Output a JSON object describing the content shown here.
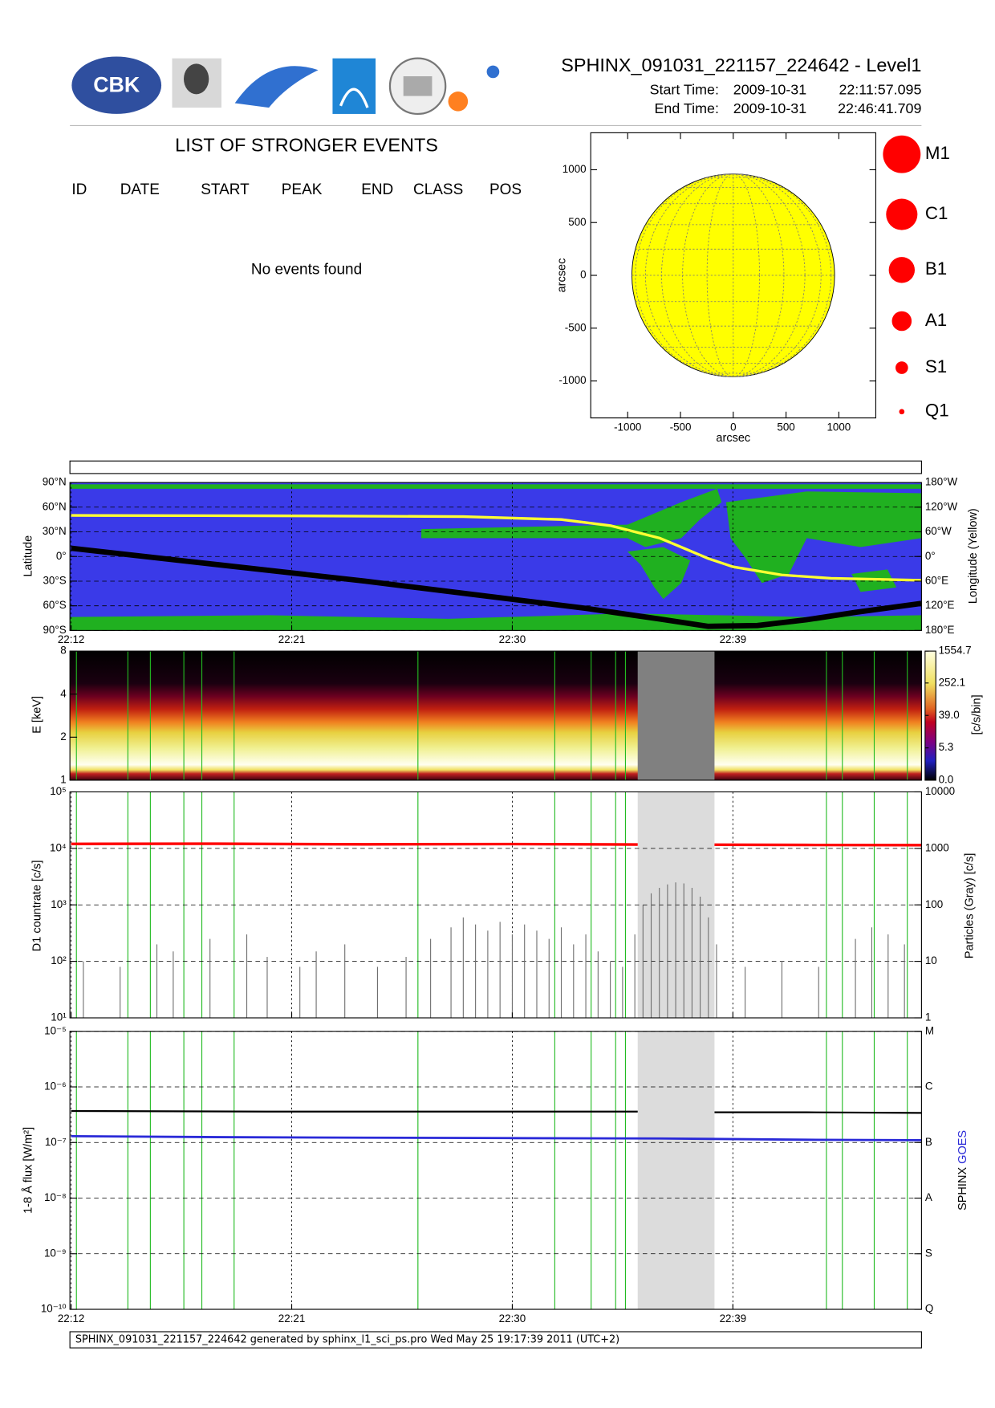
{
  "header": {
    "logo_text": "CBK",
    "title": "SPHINX_091031_221157_224642 - Level1",
    "start_label": "Start Time:",
    "start_date": "2009-10-31",
    "start_time": "22:11:57.095",
    "end_label": "End Time:",
    "end_date": "2009-10-31",
    "end_time": "22:46:41.709"
  },
  "events": {
    "title": "LIST OF STRONGER EVENTS",
    "columns": [
      "ID",
      "DATE",
      "START",
      "PEAK",
      "END",
      "CLASS",
      "POS"
    ],
    "message": "No events found"
  },
  "footer": "SPHINX_091031_221157_224642 generated by sphinx_l1_sci_ps.pro Wed May 25 19:17:39 2011 (UTC+2)",
  "event_markers": {
    "color": "#22bb22",
    "x": [
      "22:12:13",
      "22:14:19",
      "22:15:14",
      "22:16:36",
      "22:17:20",
      "22:18:39",
      "22:26:09",
      "22:31:44",
      "22:33:13",
      "22:34:13",
      "22:34:37",
      "22:42:49",
      "22:43:28",
      "22:44:46",
      "22:46:07"
    ]
  },
  "chart_data": [
    {
      "type": "disk",
      "xlabel": "arcsec",
      "ylabel": "arcsec",
      "xlim": [
        -1350,
        1350
      ],
      "ylim": [
        -1350,
        1350
      ],
      "xticks": [
        -1000,
        -500,
        0,
        500,
        1000
      ],
      "yticks": [
        -1000,
        -500,
        0,
        500,
        1000
      ],
      "disk_radius": 960,
      "color": "#ffff00",
      "legend": [
        "M1",
        "C1",
        "B1",
        "A1",
        "S1",
        "Q1"
      ],
      "legend_color": "#ff0000"
    },
    {
      "type": "line",
      "ylabel": "Latitude",
      "y2label": "Longitude (Yellow)",
      "grid": true,
      "xtick_labels": true,
      "xlim": [
        "22:11:57.095",
        "22:46:41.709"
      ],
      "xticks": [
        "22:12",
        "22:21",
        "22:30",
        "22:39"
      ],
      "ylim": [
        -90,
        90
      ],
      "yticks": [
        {
          "value": -90,
          "label": "90°S"
        },
        {
          "value": -60,
          "label": "60°S"
        },
        {
          "value": -30,
          "label": "30°S"
        },
        {
          "value": 0,
          "label": "0°"
        },
        {
          "value": 30,
          "label": "30°N"
        },
        {
          "value": 60,
          "label": "60°N"
        },
        {
          "value": 90,
          "label": "90°N"
        }
      ],
      "y2lim": [
        180,
        -180
      ],
      "y2ticks": [
        {
          "value": 180,
          "label": "180°E"
        },
        {
          "value": 120,
          "label": "120°E"
        },
        {
          "value": 60,
          "label": "60°E"
        },
        {
          "value": 0,
          "label": "0°"
        },
        {
          "value": -60,
          "label": "60°W"
        },
        {
          "value": -120,
          "label": "120°W"
        },
        {
          "value": -180,
          "label": "180°W"
        }
      ],
      "series": [
        {
          "color": "#ffff33",
          "axis": "y2",
          "width": 3,
          "x": [
            "22:12",
            "22:20",
            "22:28",
            "22:32",
            "22:34",
            "22:36",
            "22:37",
            "22:38",
            "22:39",
            "22:41",
            "22:43",
            "22:46:41"
          ],
          "values": [
            -100,
            -99,
            -97,
            -90,
            -75,
            -45,
            -20,
            5,
            25,
            45,
            53,
            58
          ]
        },
        {
          "color": "#000000",
          "width": 6,
          "x": [
            "22:12",
            "22:18",
            "22:24",
            "22:30",
            "22:33",
            "22:36",
            "22:38",
            "22:40",
            "22:42",
            "22:44",
            "22:46:41"
          ],
          "values": [
            10,
            -10,
            -30,
            -52,
            -63,
            -76,
            -85,
            -84,
            -77,
            -68,
            -57
          ]
        }
      ]
    },
    {
      "type": "spectrogram",
      "ylabel": "E [keV]",
      "clabel": "[c/s/bin]",
      "ylog": true,
      "xlim": [
        "22:11:57.095",
        "22:46:41.709"
      ],
      "ylim": [
        1,
        8
      ],
      "yticks": [
        1,
        2,
        4,
        8
      ],
      "clim": [
        0,
        1554.7
      ],
      "cticks": [
        {
          "value": 0,
          "label": "0.0"
        },
        5.3,
        {
          "value": 39,
          "label": "39.0"
        },
        252.1,
        1554.7
      ],
      "gap": [
        "22:35:07",
        "22:38:15"
      ],
      "gap_color": "#808080"
    },
    {
      "type": "line",
      "ylabel": "D1 countrate [c/s]",
      "y2label": "Particles (Gray) [c/s]",
      "ylog": true,
      "grid": true,
      "xtick_labels": false,
      "xlim": [
        "22:11:57.095",
        "22:46:41.709"
      ],
      "xticks": [
        "22:12",
        "22:21",
        "22:30",
        "22:39"
      ],
      "ylim": [
        10,
        100000
      ],
      "yticks": [
        {
          "value": 10,
          "label": "10¹"
        },
        {
          "value": 100,
          "label": "10²"
        },
        {
          "value": 1000,
          "label": "10³"
        },
        {
          "value": 10000,
          "label": "10⁴"
        },
        {
          "value": 100000,
          "label": "10⁵"
        }
      ],
      "y2lim": [
        1,
        10000
      ],
      "y2ticks": [
        1,
        10,
        100,
        1000,
        10000
      ],
      "gap": [
        "22:35:07",
        "22:38:15"
      ],
      "gap_color": "#dcdcdc",
      "series": [
        {
          "color": "#ff0000",
          "width": 3,
          "x": [
            "22:12",
            "22:18",
            "22:24",
            "22:30",
            "22:35:07",
            "22:36",
            "22:38:15",
            "22:42",
            "22:46:41"
          ],
          "values": [
            12000,
            12100,
            11800,
            11900,
            11700,
            null,
            11600,
            11500,
            11400
          ]
        },
        {
          "color": "#707070",
          "axis": "y2",
          "style": "spikes",
          "x": [
            "22:12:30",
            "22:14:00",
            "22:15:30",
            "22:16:10",
            "22:17:40",
            "22:19:10",
            "22:20:00",
            "22:21:20",
            "22:22:00",
            "22:23:10",
            "22:24:30",
            "22:25:40",
            "22:26:40",
            "22:27:30",
            "22:28:00",
            "22:28:30",
            "22:29:00",
            "22:29:30",
            "22:30:00",
            "22:30:30",
            "22:31:00",
            "22:31:30",
            "22:32:00",
            "22:32:30",
            "22:33:00",
            "22:33:30",
            "22:34:00",
            "22:34:30",
            "22:35:00",
            "22:35:20",
            "22:35:40",
            "22:36:00",
            "22:36:20",
            "22:36:40",
            "22:37:00",
            "22:37:20",
            "22:37:40",
            "22:38:00",
            "22:38:20",
            "22:39:30",
            "22:41:00",
            "22:42:30",
            "22:44:00",
            "22:44:40",
            "22:45:20",
            "22:46:00"
          ],
          "values": [
            10,
            8,
            20,
            15,
            25,
            30,
            12,
            8,
            15,
            20,
            8,
            12,
            25,
            40,
            60,
            45,
            35,
            50,
            30,
            45,
            35,
            25,
            40,
            20,
            30,
            15,
            10,
            8,
            30,
            100,
            160,
            200,
            230,
            250,
            240,
            200,
            140,
            60,
            20,
            8,
            10,
            8,
            25,
            40,
            30,
            20
          ]
        }
      ]
    },
    {
      "type": "line",
      "ylabel": "1-8 Å flux [W/m²]",
      "ylog": true,
      "grid": true,
      "xtick_labels": true,
      "xlim": [
        "22:11:57.095",
        "22:46:41.709"
      ],
      "xticks": [
        "22:12",
        "22:21",
        "22:30",
        "22:39"
      ],
      "ylim": [
        1e-10,
        1e-05
      ],
      "yticks": [
        {
          "value": 1e-10,
          "label": "10⁻¹⁰"
        },
        {
          "value": 1e-09,
          "label": "10⁻⁹"
        },
        {
          "value": 1e-08,
          "label": "10⁻⁸"
        },
        {
          "value": 1e-07,
          "label": "10⁻⁷"
        },
        {
          "value": 1e-06,
          "label": "10⁻⁶"
        },
        {
          "value": 1e-05,
          "label": "10⁻⁵"
        }
      ],
      "y2lim": [
        1e-10,
        1e-05
      ],
      "y2ticks": [
        {
          "value": 1e-10,
          "label": "Q"
        },
        {
          "value": 1e-09,
          "label": "S"
        },
        {
          "value": 1e-08,
          "label": "A"
        },
        {
          "value": 1e-07,
          "label": "B"
        },
        {
          "value": 1e-06,
          "label": "C"
        },
        {
          "value": 1e-05,
          "label": "M"
        }
      ],
      "gap": [
        "22:35:07",
        "22:38:15"
      ],
      "gap_color": "#dcdcdc",
      "series": [
        {
          "name": "SPHINX",
          "color": "#000000",
          "width": 2,
          "x": [
            "22:12",
            "22:20",
            "22:28",
            "22:35:07",
            "22:36",
            "22:38:15",
            "22:42",
            "22:46:41"
          ],
          "values": [
            3.7e-07,
            3.6e-07,
            3.6e-07,
            3.6e-07,
            null,
            3.5e-07,
            3.5e-07,
            3.4e-07
          ]
        },
        {
          "name": "GOES",
          "color": "#2a2ad8",
          "width": 2.5,
          "x": [
            "22:12",
            "22:18",
            "22:24",
            "22:30",
            "22:36",
            "22:42",
            "22:46:41"
          ],
          "values": [
            1.3e-07,
            1.25e-07,
            1.22e-07,
            1.2e-07,
            1.18e-07,
            1.12e-07,
            1.1e-07
          ]
        }
      ]
    }
  ]
}
